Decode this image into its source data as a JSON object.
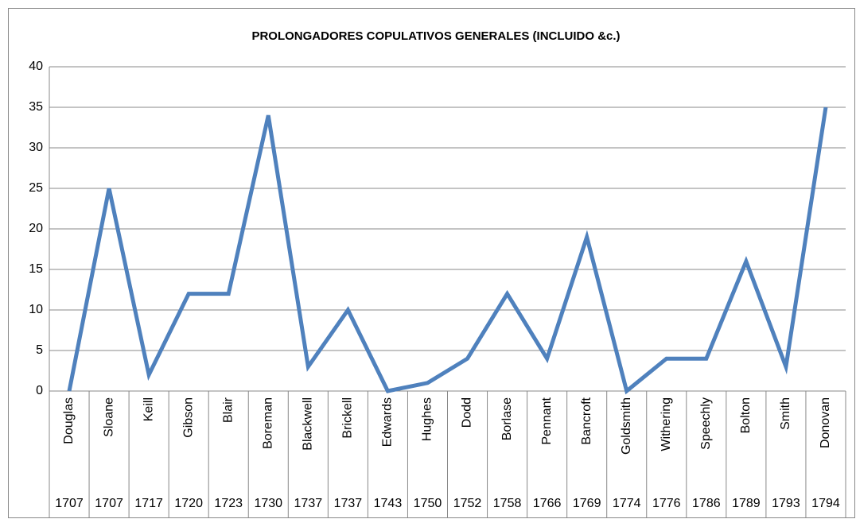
{
  "chart_data": {
    "type": "line",
    "title": "PROLONGADORES COPULATIVOS GENERALES (INCLUIDO &c.)",
    "categories": [
      "Douglas",
      "Sloane",
      "Keill",
      "Gibson",
      "Blair",
      "Boreman",
      "Blackwell",
      "Brickell",
      "Edwards",
      "Hughes",
      "Dodd",
      "Borlase",
      "Pennant",
      "Bancroft",
      "Goldsmith",
      "Withering",
      "Speechly",
      "Bolton",
      "Smith",
      "Donovan"
    ],
    "years": [
      1707,
      1707,
      1717,
      1720,
      1723,
      1730,
      1737,
      1737,
      1743,
      1750,
      1752,
      1758,
      1766,
      1769,
      1774,
      1776,
      1786,
      1789,
      1793,
      1794
    ],
    "values": [
      0,
      25,
      2,
      12,
      12,
      34,
      3,
      10,
      0,
      1,
      4,
      12,
      4,
      19,
      0,
      4,
      4,
      16,
      3,
      35
    ],
    "color": "#4f81bd",
    "ylim": [
      0,
      40
    ],
    "yticks": [
      0,
      5,
      10,
      15,
      20,
      25,
      30,
      35,
      40
    ],
    "grid": true
  }
}
